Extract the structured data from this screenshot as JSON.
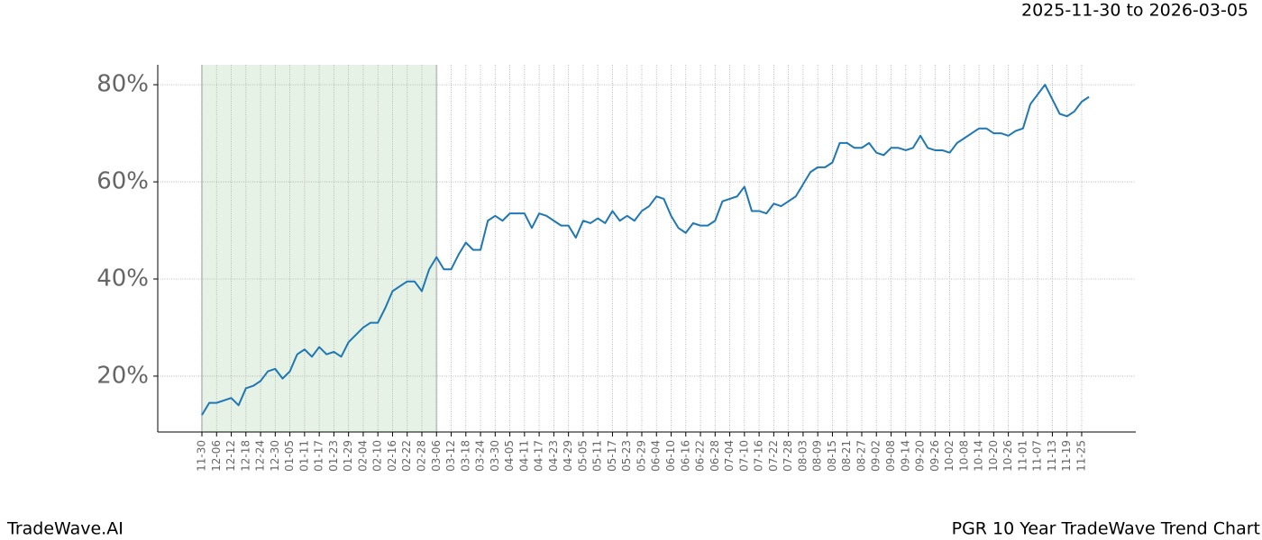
{
  "chart_data": {
    "type": "line",
    "date_range": "2025-11-30 to 2026-03-05",
    "brand": "TradeWave.AI",
    "title": "PGR 10 Year TradeWave Trend Chart",
    "categories": [
      "11-30",
      null,
      "12-06",
      null,
      "12-12",
      null,
      "12-18",
      null,
      "12-24",
      null,
      "12-30",
      null,
      "01-05",
      null,
      "01-11",
      null,
      "01-17",
      null,
      "01-23",
      null,
      "01-29",
      null,
      "02-04",
      null,
      "02-10",
      null,
      "02-16",
      null,
      "02-22",
      null,
      "02-28",
      null,
      "03-06",
      null,
      "03-12",
      null,
      "03-18",
      null,
      "03-24",
      null,
      "03-30",
      null,
      "04-05",
      null,
      "04-11",
      null,
      "04-17",
      null,
      "04-23",
      null,
      "04-29",
      null,
      "05-05",
      null,
      "05-11",
      null,
      "05-17",
      null,
      "05-23",
      null,
      "05-29",
      null,
      "06-04",
      null,
      "06-10",
      null,
      "06-16",
      null,
      "06-22",
      null,
      "06-28",
      null,
      "07-04",
      null,
      "07-10",
      null,
      "07-16",
      null,
      "07-22",
      null,
      "07-28",
      null,
      "08-03",
      null,
      "08-09",
      null,
      "08-15",
      null,
      "08-21",
      null,
      "08-27",
      null,
      "09-02",
      null,
      "09-08",
      null,
      "09-14",
      null,
      "09-20",
      null,
      "09-26",
      null,
      "10-02",
      null,
      "10-08",
      null,
      "10-14",
      null,
      "10-20",
      null,
      "10-26",
      null,
      "11-01",
      null,
      "11-07",
      null,
      "11-13",
      null,
      "11-19",
      null,
      "11-25",
      null
    ],
    "series": [
      {
        "name": "PGR",
        "color": "#1f77b4",
        "values": [
          12,
          14.5,
          14.5,
          15,
          15.5,
          14,
          17.5,
          18,
          19,
          21,
          21.5,
          19.5,
          21,
          24.5,
          25.5,
          24,
          26,
          24.5,
          25,
          24,
          27,
          28.5,
          30,
          31,
          31,
          34,
          37.5,
          38.5,
          39.5,
          39.5,
          37.5,
          42,
          44.5,
          42,
          42,
          45,
          47.5,
          46,
          46,
          52,
          53,
          52,
          53.5,
          53.5,
          53.5,
          50.5,
          53.5,
          53,
          52,
          51,
          51,
          48.5,
          52,
          51.5,
          52.5,
          51.5,
          54,
          52,
          53,
          52,
          54,
          55,
          57,
          56.5,
          53,
          50.5,
          49.5,
          51.5,
          51,
          51,
          52,
          56,
          56.5,
          57,
          59,
          54,
          54,
          53.5,
          55.5,
          55,
          56,
          57,
          59.5,
          62,
          63,
          63,
          64,
          68,
          68,
          67,
          67,
          68,
          66,
          65.5,
          67,
          67,
          66.5,
          67,
          69.5,
          67,
          66.5,
          66.5,
          66,
          68,
          69,
          70,
          71,
          71,
          70,
          70,
          69.5,
          70.5,
          71,
          76,
          78,
          80,
          77,
          74,
          73.5,
          74.5,
          76.5,
          77.5
        ]
      }
    ],
    "highlight": {
      "start": "11-30",
      "end": "03-06",
      "color": "#e6f2e6"
    },
    "ylim": [
      8.5,
      84.1
    ],
    "yticks": [
      {
        "value": 20,
        "label": "20%"
      },
      {
        "value": 40,
        "label": "40%"
      },
      {
        "value": 60,
        "label": "60%"
      },
      {
        "value": 80,
        "label": "80%"
      }
    ],
    "grid": true
  }
}
